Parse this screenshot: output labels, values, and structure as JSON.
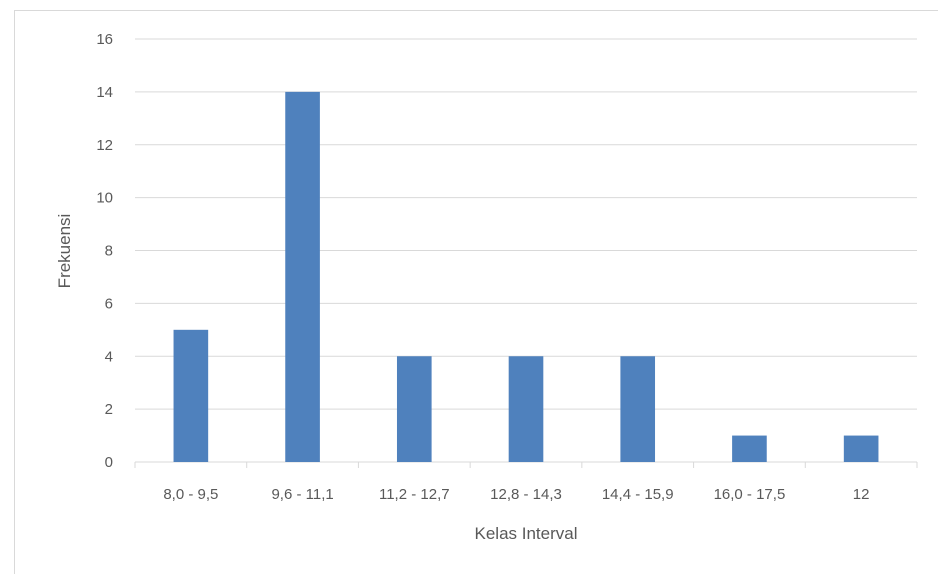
{
  "chart_data": {
    "type": "bar",
    "categories": [
      "8,0 - 9,5",
      "9,6 - 11,1",
      "11,2 - 12,7",
      "12,8 - 14,3",
      "14,4 - 15,9",
      "16,0 - 17,5",
      "12"
    ],
    "values": [
      5,
      14,
      4,
      4,
      4,
      1,
      1
    ],
    "xlabel": "Kelas Interval",
    "ylabel": "Frekuensi",
    "ylim": [
      0,
      16
    ],
    "yticks": [
      0,
      2,
      4,
      6,
      8,
      10,
      12,
      14,
      16
    ],
    "grid": true,
    "bar_color": "#4f81bd",
    "grid_color": "#d9d9d9"
  }
}
